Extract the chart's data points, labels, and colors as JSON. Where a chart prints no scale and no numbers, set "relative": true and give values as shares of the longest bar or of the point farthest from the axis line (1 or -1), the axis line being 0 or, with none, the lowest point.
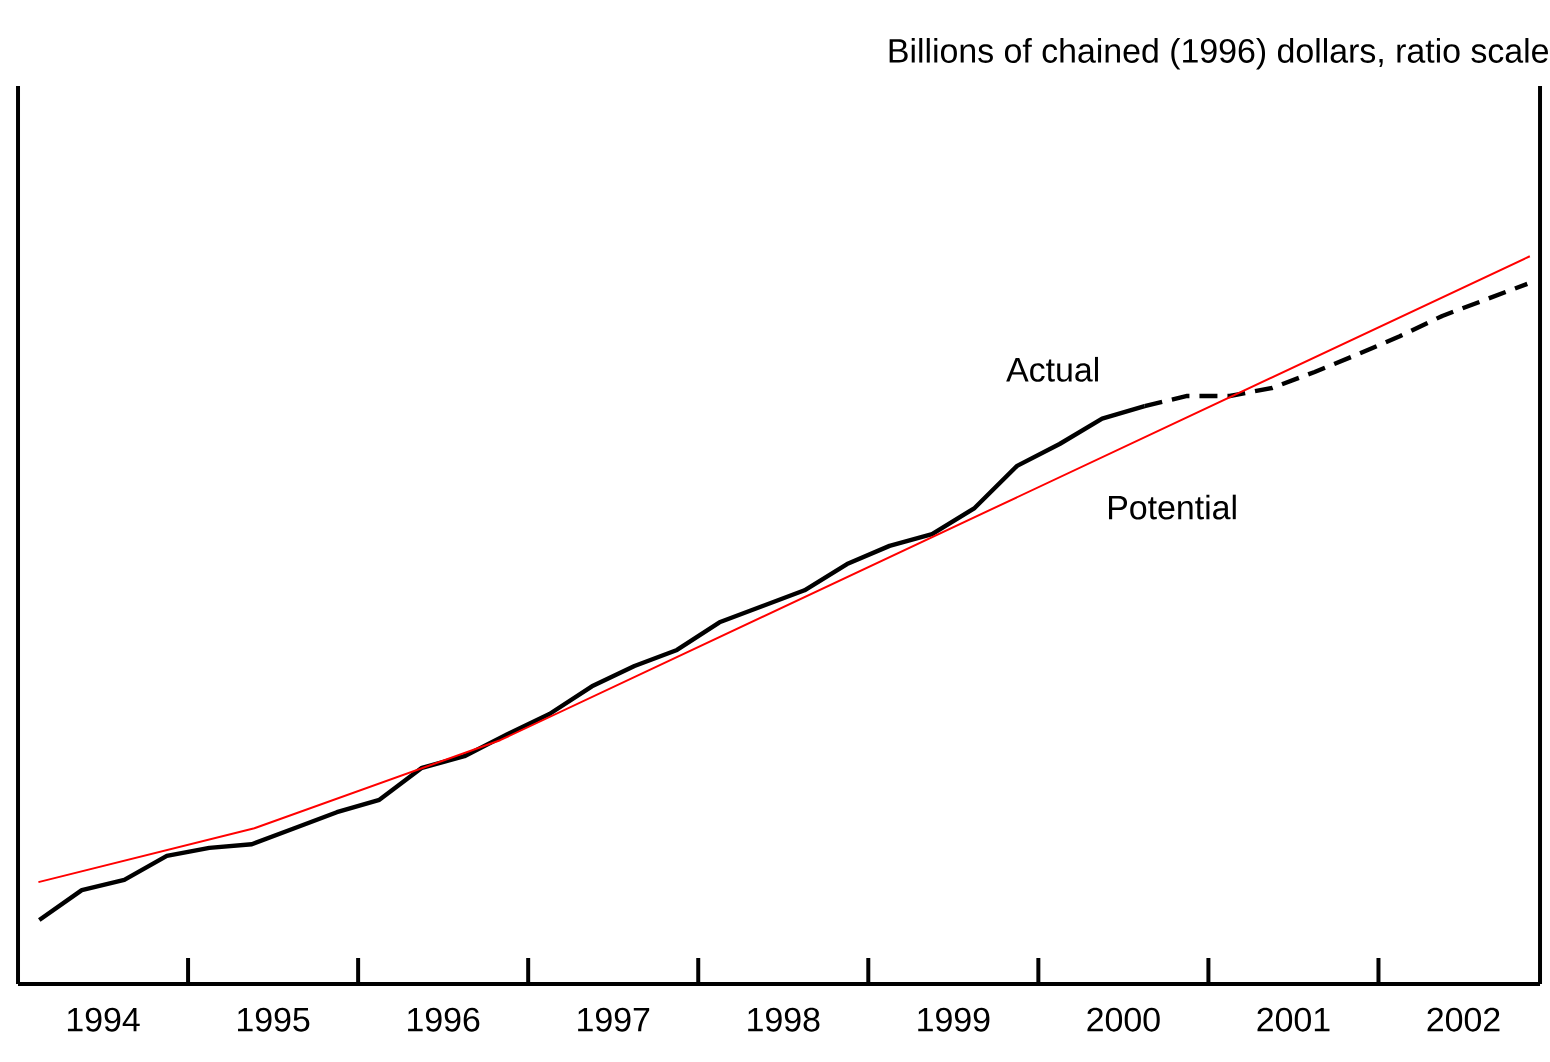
{
  "chart_data": {
    "type": "line",
    "relative": true,
    "annotations": [
      "Billions of chained (1996) dollars, ratio scale"
    ],
    "xlim": [
      1994,
      2002.95
    ],
    "xticks": [
      {
        "value": 1994.5,
        "label": "1994"
      },
      {
        "value": 1995,
        "label": null
      },
      {
        "value": 1995.5,
        "label": "1995"
      },
      {
        "value": 1996,
        "label": null
      },
      {
        "value": 1996.5,
        "label": "1996"
      },
      {
        "value": 1997,
        "label": null
      },
      {
        "value": 1997.5,
        "label": "1997"
      },
      {
        "value": 1998,
        "label": null
      },
      {
        "value": 1998.5,
        "label": "1998"
      },
      {
        "value": 1999,
        "label": null
      },
      {
        "value": 1999.5,
        "label": "1999"
      },
      {
        "value": 2000,
        "label": null
      },
      {
        "value": 2000.5,
        "label": "2000"
      },
      {
        "value": 2001,
        "label": null
      },
      {
        "value": 2001.5,
        "label": "2001"
      },
      {
        "value": 2002,
        "label": null
      },
      {
        "value": 2002.5,
        "label": "2002"
      }
    ],
    "series": [
      {
        "name": "Actual",
        "color": "#000000",
        "line_style": "solid",
        "x": [
          1994.125,
          1994.375,
          1994.625,
          1994.875,
          1995.125,
          1995.375,
          1995.625,
          1995.875,
          1996.125,
          1996.375,
          1996.625,
          1996.875,
          1997.125,
          1997.375,
          1997.625,
          1997.875,
          1998.125,
          1998.375,
          1998.625,
          1998.875,
          1999.125,
          1999.375,
          1999.625,
          1999.875,
          2000.125,
          2000.375,
          2000.625
        ],
        "values": [
          0.088,
          0.129,
          0.143,
          0.176,
          0.187,
          0.192,
          0.214,
          0.236,
          0.253,
          0.297,
          0.313,
          0.343,
          0.371,
          0.409,
          0.437,
          0.459,
          0.497,
          0.519,
          0.541,
          0.577,
          0.602,
          0.618,
          0.654,
          0.712,
          0.742,
          0.777,
          0.794
        ]
      },
      {
        "color": "#000000",
        "line_style": "dashed",
        "x": [
          2000.625,
          2000.875,
          2001.125,
          2001.375,
          2001.625,
          2001.875,
          2002.125,
          2002.375,
          2002.625,
          2002.875
        ],
        "values": [
          0.794,
          0.808,
          0.808,
          0.819,
          0.841,
          0.865,
          0.89,
          0.918,
          0.94,
          0.962
        ]
      },
      {
        "name": "Potential",
        "color": "#ff0000",
        "line_style": "solid",
        "x": [
          1994.12,
          1995.39,
          1996.835,
          2002.89
        ],
        "values": [
          0.14,
          0.214,
          0.335,
          1.0
        ]
      }
    ]
  }
}
